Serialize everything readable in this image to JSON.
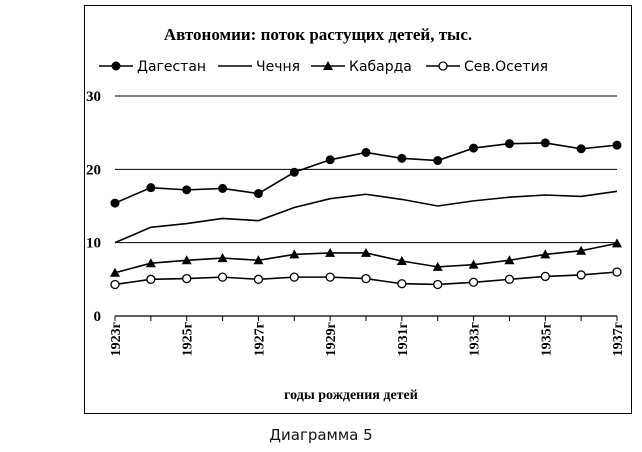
{
  "chart_data": {
    "type": "line",
    "title": "Автономии: поток растущих детей, тыс.",
    "xlabel": "годы рождения детей",
    "ylabel": "",
    "ylim": [
      0,
      30
    ],
    "yticks": [
      0,
      10,
      20,
      30
    ],
    "grid": "horizontal",
    "legend_position": "top",
    "x": [
      1923,
      1924,
      1925,
      1926,
      1927,
      1928,
      1929,
      1930,
      1931,
      1932,
      1933,
      1934,
      1935,
      1936,
      1937
    ],
    "tick_labels": [
      "1923г",
      "1925г",
      "1927г",
      "1929г",
      "1931г",
      "1933г",
      "1935г",
      "1937г"
    ],
    "tick_years": [
      1923,
      1925,
      1927,
      1929,
      1931,
      1933,
      1935,
      1937
    ],
    "series": [
      {
        "name": "Дагестан",
        "marker": "filled-circle",
        "values": [
          15.4,
          17.5,
          17.2,
          17.4,
          16.7,
          19.6,
          21.3,
          22.3,
          21.5,
          21.2,
          22.9,
          23.5,
          23.6,
          22.8,
          23.3
        ]
      },
      {
        "name": "Чечня",
        "marker": "none",
        "values": [
          10.0,
          12.1,
          12.6,
          13.3,
          13.0,
          14.8,
          16.0,
          16.6,
          15.9,
          15.0,
          15.7,
          16.2,
          16.5,
          16.3,
          17.0
        ]
      },
      {
        "name": "Кабарда",
        "marker": "filled-triangle",
        "values": [
          5.9,
          7.2,
          7.6,
          7.9,
          7.6,
          8.4,
          8.6,
          8.6,
          7.5,
          6.7,
          7.0,
          7.6,
          8.4,
          8.9,
          9.9
        ]
      },
      {
        "name": "Сев.Осетия",
        "marker": "open-circle",
        "values": [
          4.3,
          5.0,
          5.1,
          5.3,
          5.0,
          5.3,
          5.3,
          5.1,
          4.4,
          4.3,
          4.6,
          5.0,
          5.4,
          5.6,
          6.0
        ]
      }
    ],
    "colors": {
      "line": "#000000",
      "grid": "#000000"
    }
  },
  "caption": "Диаграмма 5"
}
